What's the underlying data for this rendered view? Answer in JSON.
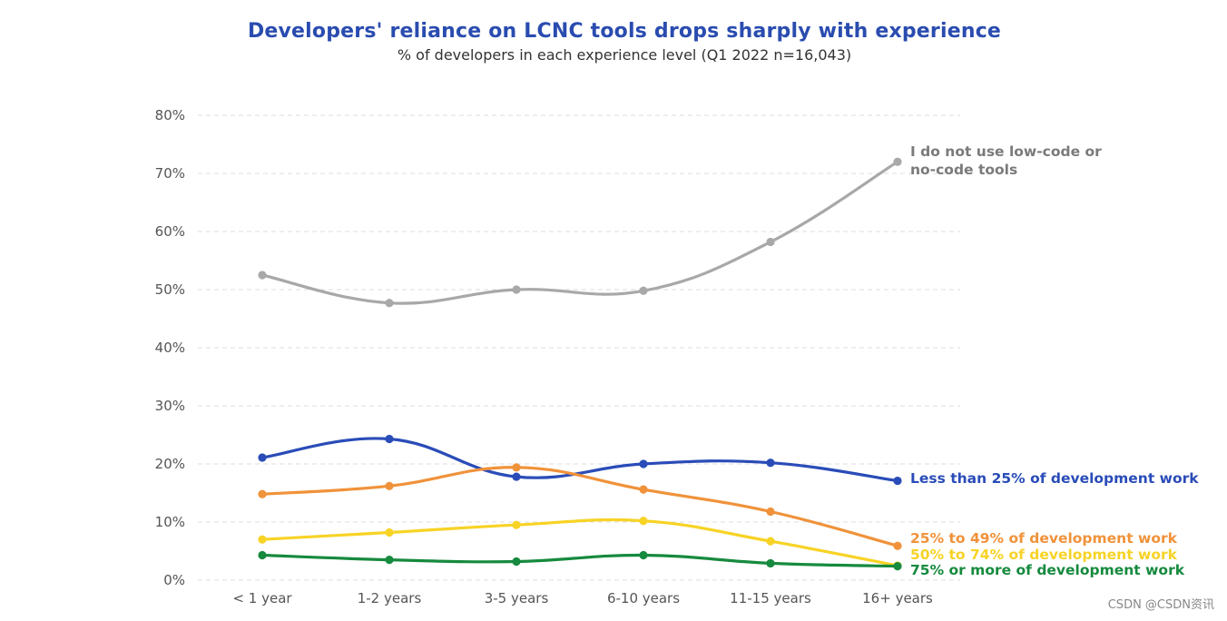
{
  "chart_data": {
    "type": "line",
    "title": "Developers' reliance on LCNC tools drops sharply with experience",
    "subtitle": "% of developers in each experience level (Q1 2022 n=16,043)",
    "categories": [
      "< 1 year",
      "1-2 years",
      "3-5 years",
      "6-10 years",
      "11-15 years",
      "16+ years"
    ],
    "ylim": [
      0,
      80
    ],
    "yticks": [
      "0%",
      "10%",
      "20%",
      "30%",
      "40%",
      "50%",
      "60%",
      "70%",
      "80%"
    ],
    "grid": "horizontal dashed",
    "legend": "direct labels at line ends",
    "series": [
      {
        "name": "I do not use low-code or no-code tools",
        "label_lines": [
          "I do not use low-code or",
          "no-code tools"
        ],
        "color": "#a8a8a8",
        "values": [
          52.5,
          47.7,
          50.0,
          49.8,
          58.2,
          72.0
        ]
      },
      {
        "name": "Less than 25% of development work",
        "label_lines": [
          "Less than 25% of development work"
        ],
        "color": "#2a4cb8",
        "values": [
          21.1,
          24.3,
          17.8,
          20.0,
          20.2,
          17.1
        ]
      },
      {
        "name": "25% to 49% of development work",
        "label_lines": [
          "25% to 49% of development work"
        ],
        "color": "#f0923a",
        "values": [
          14.8,
          16.2,
          19.4,
          15.6,
          11.8,
          5.9
        ]
      },
      {
        "name": "50% to 74% of development work",
        "label_lines": [
          "50% to 74% of development work"
        ],
        "color": "#f7d325",
        "values": [
          7.0,
          8.2,
          9.5,
          10.2,
          6.7,
          2.5
        ]
      },
      {
        "name": "75% or more of development work",
        "label_lines": [
          "75% or more of development work"
        ],
        "color": "#168a3e",
        "values": [
          4.3,
          3.5,
          3.2,
          4.3,
          2.9,
          2.4
        ]
      }
    ]
  },
  "watermark": "CSDN @CSDN资讯"
}
